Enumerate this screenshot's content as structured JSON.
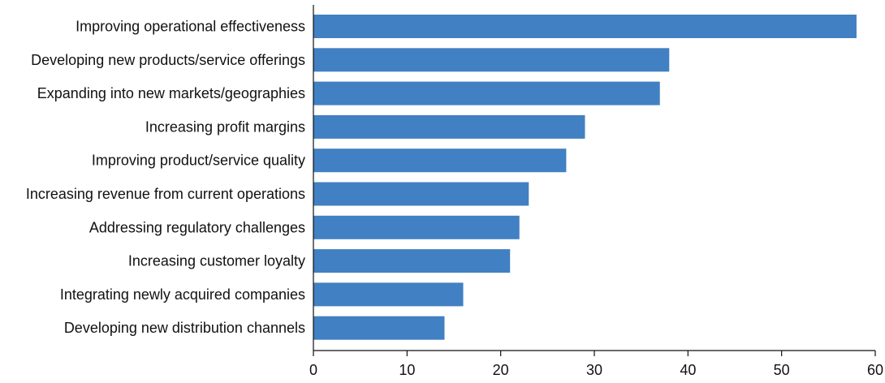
{
  "chart_data": {
    "type": "bar",
    "orientation": "horizontal",
    "title": "",
    "xlabel": "",
    "ylabel": "",
    "categories": [
      "Improving operational effectiveness",
      "Developing new products/service offerings",
      "Expanding into new markets/geographies",
      "Increasing profit margins",
      "Improving product/service quality",
      "Increasing revenue from current operations",
      "Addressing regulatory challenges",
      "Increasing customer loyalty",
      "Integrating newly acquired companies",
      "Developing new distribution channels"
    ],
    "values": [
      58,
      38,
      37,
      29,
      27,
      23,
      22,
      21,
      16,
      14
    ],
    "xlim": [
      0,
      60
    ],
    "xticks": [
      0,
      10,
      20,
      30,
      40,
      50,
      60
    ],
    "bar_color": "#4180c2",
    "grid": false,
    "legend": "none"
  }
}
